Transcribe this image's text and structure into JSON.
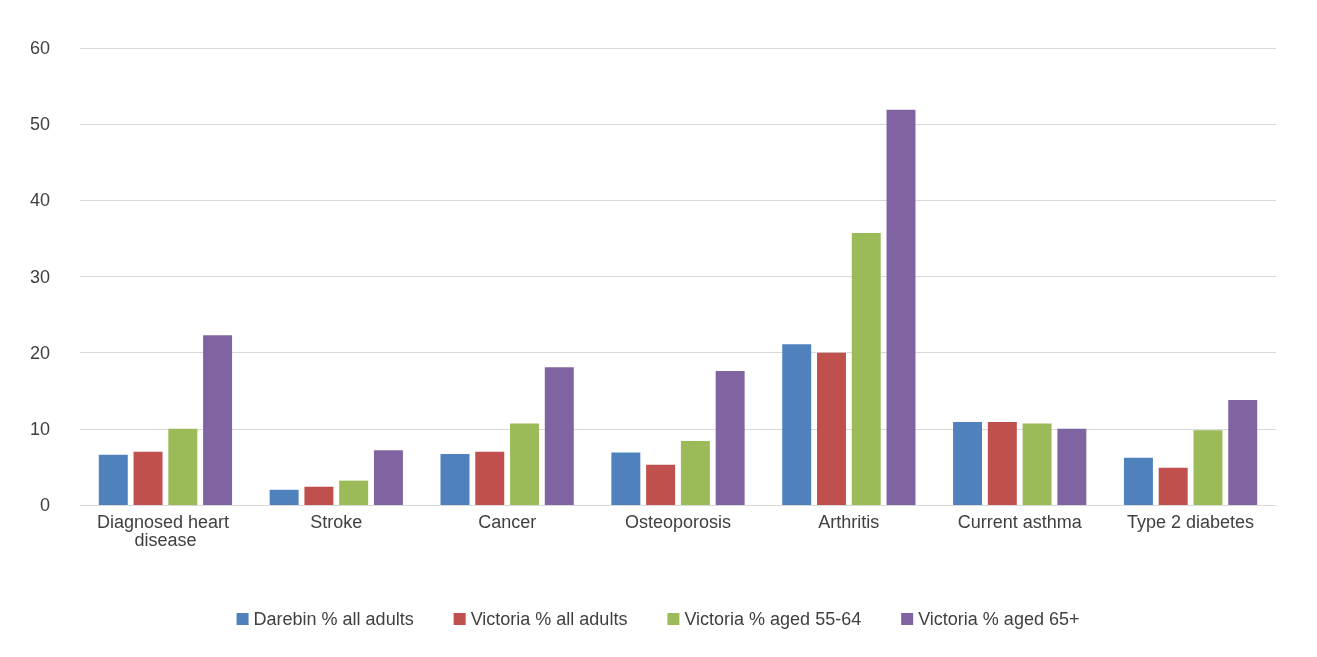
{
  "chart_data": {
    "type": "bar",
    "categories": [
      "Diagnosed heart disease",
      "Stroke",
      "Cancer",
      "Osteoporosis",
      "Arthritis",
      "Current asthma",
      "Type 2 diabetes"
    ],
    "series": [
      {
        "name": "Darebin % all adults",
        "color": "#4f81bd",
        "values": [
          6.6,
          2.0,
          6.7,
          6.9,
          21.1,
          10.9,
          6.2
        ]
      },
      {
        "name": "Victoria % all adults",
        "color": "#c0504d",
        "values": [
          7.0,
          2.4,
          7.0,
          5.3,
          20.0,
          10.9,
          4.9
        ]
      },
      {
        "name": "Victoria % aged 55-64",
        "color": "#9bbb59",
        "values": [
          10.0,
          3.2,
          10.7,
          8.4,
          35.7,
          10.7,
          9.8
        ]
      },
      {
        "name": "Victoria % aged 65+",
        "color": "#8064a2",
        "values": [
          22.3,
          7.2,
          18.1,
          17.6,
          51.9,
          10.0,
          13.8
        ]
      }
    ],
    "ylim": [
      0,
      60
    ],
    "yticks": [
      0,
      10,
      20,
      30,
      40,
      50,
      60
    ],
    "grid": "y",
    "legend": "bottom"
  }
}
